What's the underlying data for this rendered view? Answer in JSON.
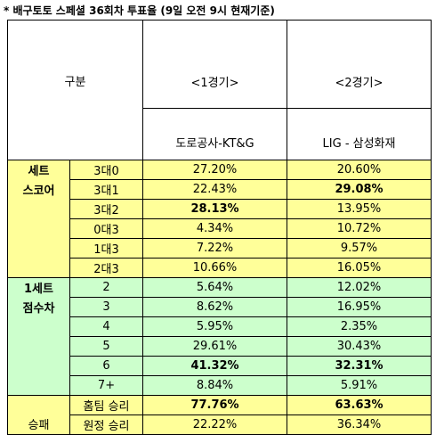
{
  "title": "* 배구토토 스페셜 36회차 투표율 (9일 오전 9시 현재기준)",
  "header": {
    "category": "구분",
    "game1_num": "<1경기>",
    "game1_name": "도로공사-KT&G",
    "game2_num": "<2경기>",
    "game2_name": "LIG - 삼성화재"
  },
  "set_score": {
    "label1": "세트",
    "label2": "스코어",
    "rows": [
      {
        "score": "3대0",
        "g1": "27.20%",
        "g2": "20.60%"
      },
      {
        "score": "3대1",
        "g1": "22.43%",
        "g2": "29.08%"
      },
      {
        "score": "3대2",
        "g1": "28.13%",
        "g2": "13.95%"
      },
      {
        "score": "0대3",
        "g1": "4.34%",
        "g2": "10.72%"
      },
      {
        "score": "1대3",
        "g1": "7.22%",
        "g2": "9.57%"
      },
      {
        "score": "2대3",
        "g1": "10.66%",
        "g2": "16.05%"
      }
    ]
  },
  "point_diff": {
    "label1": "1세트",
    "label2": "점수차",
    "rows": [
      {
        "diff": "2",
        "g1": "5.64%",
        "g2": "12.02%"
      },
      {
        "diff": "3",
        "g1": "8.62%",
        "g2": "16.95%"
      },
      {
        "diff": "4",
        "g1": "5.95%",
        "g2": "2.35%"
      },
      {
        "diff": "5",
        "g1": "29.61%",
        "g2": "30.43%"
      },
      {
        "diff": "6",
        "g1": "41.32%",
        "g2": "32.31%"
      },
      {
        "diff": "7+",
        "g1": "8.84%",
        "g2": "5.91%"
      }
    ]
  },
  "result": {
    "label": "승패",
    "rows": [
      {
        "type": "홈팀 승리",
        "g1": "77.76%",
        "g2": "63.63%"
      },
      {
        "type": "원정 승리",
        "g1": "22.22%",
        "g2": "36.34%"
      }
    ]
  },
  "colors": {
    "set_score_bg": "#ffff99",
    "point_diff_bg": "#ccffcc"
  }
}
